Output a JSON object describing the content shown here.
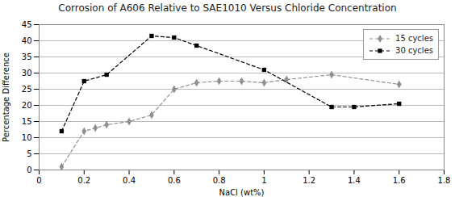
{
  "chart_data": {
    "type": "line",
    "title": "Corrosion of A606 Relative to SAE1010 Versus Chloride Concentration",
    "xlabel": "NaCl (wt%)",
    "ylabel": "Percentage Difference",
    "xlim": [
      0,
      1.8
    ],
    "ylim": [
      0,
      45
    ],
    "xticks": [
      0,
      0.2,
      0.4,
      0.6,
      0.8,
      1,
      1.2,
      1.4,
      1.6,
      1.8
    ],
    "yticks": [
      0,
      5,
      10,
      15,
      20,
      25,
      30,
      35,
      40,
      45
    ],
    "grid": "y",
    "legend": "upper right",
    "series": [
      {
        "name": "15 cycles",
        "color": "#909090",
        "marker": "diamond",
        "line_style": "dashed",
        "x": [
          0.1,
          0.2,
          0.25,
          0.3,
          0.4,
          0.5,
          0.6,
          0.7,
          0.8,
          0.9,
          1.0,
          1.1,
          1.3,
          1.6
        ],
        "values": [
          1,
          12,
          13,
          14,
          15,
          17,
          25,
          27,
          27.5,
          27.5,
          27,
          28,
          29.5,
          26.5
        ]
      },
      {
        "name": "30 cycles",
        "color": "#000000",
        "marker": "square",
        "line_style": "dashed",
        "x": [
          0.1,
          0.2,
          0.3,
          0.5,
          0.6,
          0.7,
          1.0,
          1.3,
          1.4,
          1.6
        ],
        "values": [
          12,
          27.5,
          29.5,
          41.5,
          41,
          38.5,
          31,
          19.5,
          19.5,
          20.5
        ]
      }
    ]
  }
}
